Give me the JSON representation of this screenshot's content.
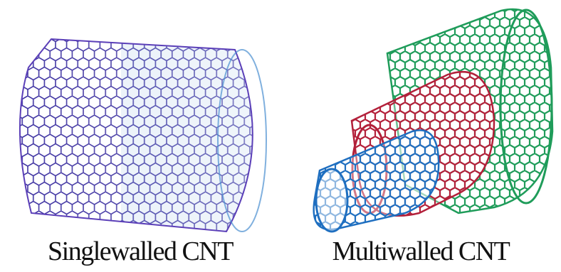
{
  "panels": [
    {
      "caption": "Singlewalled CNT",
      "walls": [
        {
          "colors": [
            "#2a1f8f",
            "#5b3fb8",
            "#4a8fd0"
          ]
        }
      ]
    },
    {
      "caption": "Multiwalled CNT",
      "walls": [
        {
          "colors": [
            "#1f9c5a",
            "#2fb870"
          ]
        },
        {
          "colors": [
            "#b3203a",
            "#d33a52"
          ]
        },
        {
          "colors": [
            "#1f6fc0",
            "#3a9ad8"
          ]
        }
      ]
    }
  ]
}
